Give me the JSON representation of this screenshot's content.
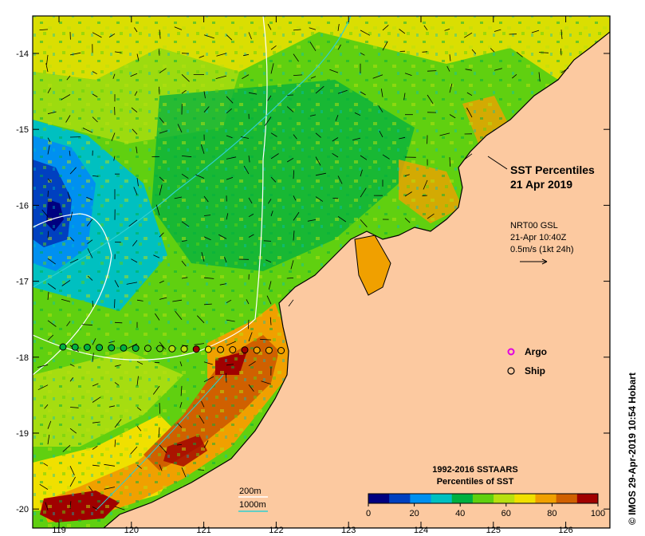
{
  "map": {
    "title_line1": "SST Percentiles",
    "title_line2": "21 Apr 2019",
    "current_label": {
      "source": "NRT00 GSL",
      "time": "21-Apr 10:40Z",
      "scale": "0.5m/s (1kt 24h)"
    },
    "legend": {
      "argo_label": "Argo",
      "ship_label": "Ship",
      "argo_color": "#e000e0"
    },
    "bathymetry_legend": {
      "contour_200": "200m",
      "contour_1000": "1000m",
      "color_200": "#ffffff",
      "color_1000": "#30d0d0"
    },
    "colorbar": {
      "title_line1": "1992-2016 SSTAARS",
      "title_line2": "Percentiles of SST",
      "ticks": [
        "0",
        "20",
        "40",
        "60",
        "80",
        "100"
      ],
      "colors": [
        "#000080",
        "#0040c0",
        "#0090f0",
        "#00c0c0",
        "#00b040",
        "#60d010",
        "#b8e010",
        "#f0e000",
        "#f0a000",
        "#d06000",
        "#a00000"
      ]
    },
    "axes": {
      "x_ticks": [
        "119",
        "120",
        "121",
        "122",
        "123",
        "124",
        "125",
        "126"
      ],
      "y_ticks": [
        "-14",
        "-15",
        "-16",
        "-17",
        "-18",
        "-19",
        "-20"
      ]
    },
    "credit": "© IMOS 29-Apr-2019 10:54 Hobart",
    "land_color": "#fcc9a0"
  }
}
